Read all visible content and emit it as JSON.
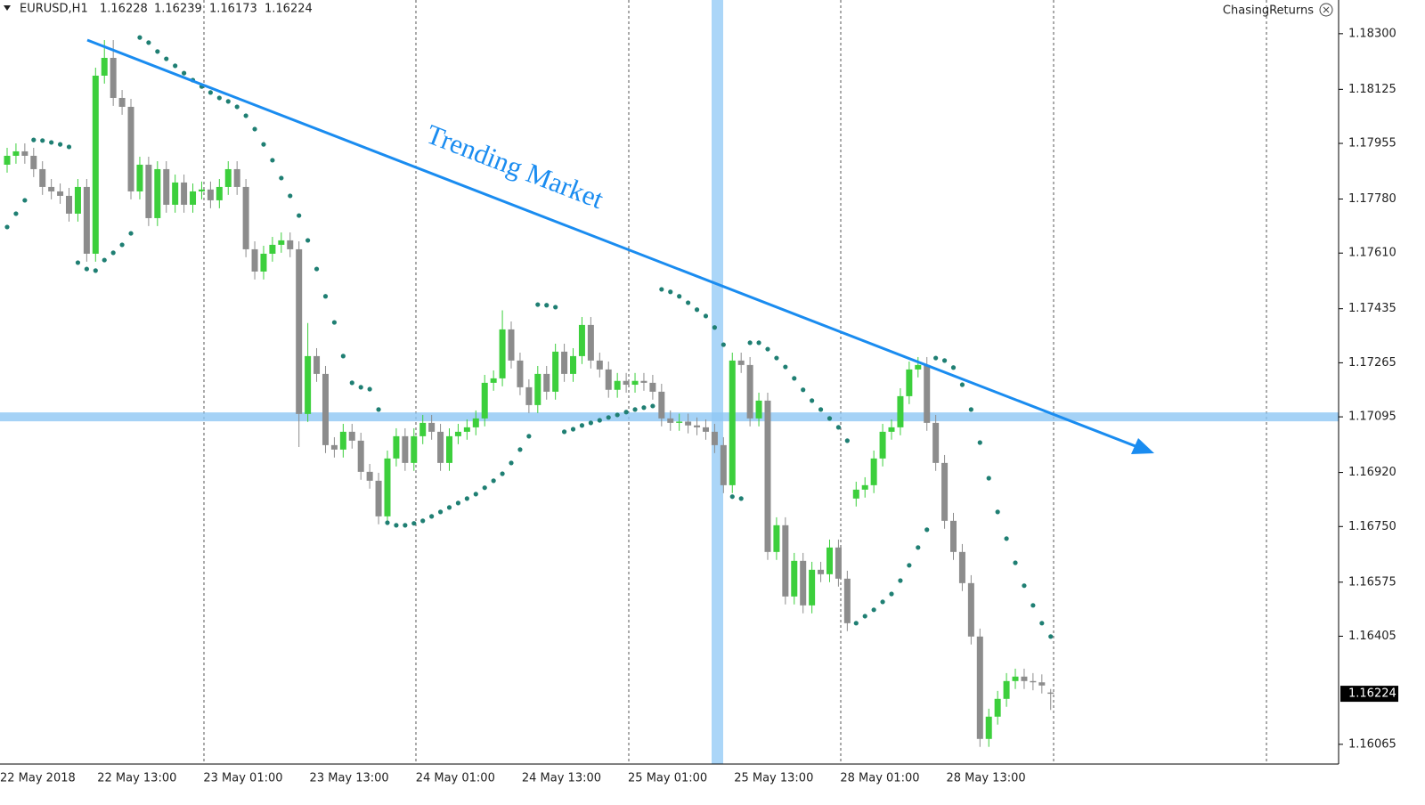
{
  "chart_data": {
    "type": "candlestick",
    "symbol": "EURUSD,H1",
    "header_ohlc": [
      1.16228,
      1.16239,
      1.16173,
      1.16224
    ],
    "brand": "ChasingReturns",
    "annotation": "Trending Market",
    "current_price": 1.16224,
    "horizontal_level": 1.17095,
    "up_color": "#3ccf3c",
    "down_color": "#8c8c8c",
    "sar_color": "#1f7f73",
    "ylim": [
      1.16003,
      1.18406
    ],
    "yticks": [
      {
        "value": 1.183,
        "label": "1.18300"
      },
      1.18125,
      1.17955,
      {
        "value": 1.1778,
        "label": "1.17780"
      },
      {
        "value": 1.1761,
        "label": "1.17610"
      },
      1.17435,
      1.17265,
      1.17095,
      {
        "value": 1.1692,
        "label": "1.16920"
      },
      {
        "value": 1.1675,
        "label": "1.16750"
      },
      1.16575,
      1.16405,
      1.16065
    ],
    "categories": [
      "22 May 2018",
      null,
      null,
      null,
      null,
      null,
      null,
      null,
      null,
      null,
      null,
      "22 May 13:00",
      null,
      null,
      null,
      null,
      null,
      null,
      null,
      null,
      null,
      null,
      null,
      "23 May 01:00",
      null,
      null,
      null,
      null,
      null,
      null,
      null,
      null,
      null,
      null,
      null,
      "23 May 13:00",
      null,
      null,
      null,
      null,
      null,
      null,
      null,
      null,
      null,
      null,
      null,
      "24 May 01:00",
      null,
      null,
      null,
      null,
      null,
      null,
      null,
      null,
      null,
      null,
      null,
      "24 May 13:00",
      null,
      null,
      null,
      null,
      null,
      null,
      null,
      null,
      null,
      null,
      null,
      "25 May 01:00",
      null,
      null,
      null,
      null,
      null,
      null,
      null,
      null,
      null,
      null,
      null,
      "25 May 13:00",
      null,
      null,
      null,
      null,
      null,
      null,
      null,
      null,
      null,
      null,
      null,
      "28 May 01:00",
      null,
      null,
      null,
      null,
      null,
      null,
      null,
      null,
      null,
      null,
      null,
      "28 May 13:00",
      null,
      null,
      null,
      null,
      null,
      null,
      null,
      null,
      null,
      null,
      null
    ],
    "open": [
      1.17888,
      1.17916,
      1.1793,
      1.17916,
      1.17874,
      1.17818,
      1.17804,
      1.1779,
      1.17734,
      1.17818,
      1.17608,
      1.18168,
      1.18224,
      1.18098,
      1.1807,
      1.17804,
      1.17888,
      1.1772,
      1.17874,
      1.17762,
      1.17832,
      1.17762,
      1.17804,
      1.1781,
      1.17776,
      1.17818,
      1.17874,
      1.17818,
      1.17622,
      1.17552,
      1.17608,
      1.17636,
      1.1765,
      1.17622,
      1.17104,
      1.17286,
      1.1723,
      1.17006,
      1.16992,
      1.17048,
      1.1702,
      1.16922,
      1.16894,
      1.16782,
      1.16964,
      1.17034,
      1.1695,
      1.17034,
      1.17076,
      1.17048,
      1.1695,
      1.17034,
      1.17048,
      1.17062,
      1.1709,
      1.17202,
      1.17216,
      1.1737,
      1.17272,
      1.17188,
      1.17132,
      1.1723,
      1.17174,
      1.173,
      1.1723,
      1.17286,
      1.17384,
      1.17272,
      1.17244,
      1.1718,
      1.17208,
      1.17196,
      1.17208,
      1.17202,
      1.17174,
      1.1709,
      1.17076,
      1.1708,
      1.17068,
      1.17062,
      1.17048,
      1.17006,
      1.1688,
      1.17272,
      1.17258,
      1.1709,
      1.17146,
      1.1667,
      1.16754,
      1.1653,
      1.16642,
      1.16502,
      1.16614,
      1.166,
      1.16684,
      1.16586,
      1.16838,
      1.16866,
      1.1688,
      1.16964,
      1.17048,
      1.17062,
      1.1716,
      1.17244,
      1.17258,
      1.17076,
      1.1695,
      1.16768,
      1.1667,
      1.16572,
      1.16404,
      1.16082,
      1.16152,
      1.16208,
      1.16264,
      1.16278,
      1.16264,
      1.1626,
      1.16228
    ],
    "high": [
      1.17941,
      1.17955,
      1.17955,
      1.17941,
      1.17899,
      1.17843,
      1.17829,
      1.17815,
      1.17843,
      1.17843,
      1.18193,
      1.1828,
      1.1828,
      1.18123,
      1.18095,
      1.17913,
      1.17913,
      1.17899,
      1.17899,
      1.17857,
      1.17857,
      1.17829,
      1.17835,
      1.17835,
      1.17843,
      1.17899,
      1.17899,
      1.17843,
      1.17647,
      1.17633,
      1.17661,
      1.17675,
      1.17675,
      1.17647,
      1.1739,
      1.17311,
      1.17255,
      1.17031,
      1.17073,
      1.17073,
      1.17045,
      1.16947,
      1.16919,
      1.16989,
      1.17059,
      1.17059,
      1.17059,
      1.17101,
      1.17101,
      1.17073,
      1.17059,
      1.17073,
      1.17087,
      1.17115,
      1.17227,
      1.17241,
      1.1743,
      1.17395,
      1.17297,
      1.17213,
      1.17255,
      1.17255,
      1.17325,
      1.17325,
      1.17311,
      1.17409,
      1.17409,
      1.17297,
      1.17269,
      1.17233,
      1.17233,
      1.17233,
      1.17233,
      1.17227,
      1.17199,
      1.17115,
      1.17105,
      1.17105,
      1.17093,
      1.17087,
      1.17073,
      1.17031,
      1.17297,
      1.17297,
      1.17283,
      1.17171,
      1.17171,
      1.16779,
      1.16779,
      1.16667,
      1.16667,
      1.16639,
      1.16639,
      1.16709,
      1.16709,
      1.16611,
      1.16891,
      1.16905,
      1.16989,
      1.17073,
      1.17087,
      1.17185,
      1.17269,
      1.17283,
      1.17283,
      1.17101,
      1.16975,
      1.16793,
      1.16695,
      1.16597,
      1.16429,
      1.16177,
      1.16233,
      1.16289,
      1.16303,
      1.16303,
      1.16289,
      1.16285,
      1.16239
    ],
    "low": [
      1.17863,
      1.17891,
      1.17891,
      1.17849,
      1.17793,
      1.17779,
      1.17765,
      1.17709,
      1.17709,
      1.17583,
      1.17583,
      1.18143,
      1.18073,
      1.18045,
      1.17779,
      1.17779,
      1.17695,
      1.17695,
      1.17737,
      1.17737,
      1.17737,
      1.17737,
      1.17779,
      1.17751,
      1.17751,
      1.17793,
      1.17793,
      1.17597,
      1.17527,
      1.17527,
      1.17583,
      1.17611,
      1.17597,
      1.17,
      1.17079,
      1.17205,
      1.16981,
      1.16967,
      1.16967,
      1.16995,
      1.16897,
      1.16869,
      1.16757,
      1.16757,
      1.16939,
      1.16925,
      1.16925,
      1.17009,
      1.17023,
      1.16925,
      1.16925,
      1.17009,
      1.17023,
      1.17037,
      1.17065,
      1.17177,
      1.17191,
      1.17247,
      1.17163,
      1.17107,
      1.17107,
      1.17149,
      1.17149,
      1.17205,
      1.17205,
      1.17261,
      1.17247,
      1.17219,
      1.17155,
      1.17155,
      1.17171,
      1.17171,
      1.17177,
      1.17149,
      1.17065,
      1.17051,
      1.17051,
      1.17043,
      1.17037,
      1.17023,
      1.16981,
      1.16855,
      1.16855,
      1.17233,
      1.17065,
      1.17065,
      1.16645,
      1.16645,
      1.16505,
      1.16505,
      1.16477,
      1.16477,
      1.16575,
      1.16575,
      1.16561,
      1.16421,
      1.16813,
      1.16841,
      1.16855,
      1.16939,
      1.17023,
      1.17037,
      1.17135,
      1.17219,
      1.17051,
      1.16925,
      1.16743,
      1.16645,
      1.16547,
      1.16379,
      1.16057,
      1.16057,
      1.16127,
      1.16183,
      1.16239,
      1.16239,
      1.16235,
      1.16225,
      1.16173
    ],
    "close": [
      1.17916,
      1.1793,
      1.17916,
      1.17874,
      1.17818,
      1.17804,
      1.1779,
      1.17734,
      1.17818,
      1.17608,
      1.18168,
      1.18224,
      1.18098,
      1.1807,
      1.17804,
      1.17888,
      1.1772,
      1.17874,
      1.17762,
      1.17832,
      1.17762,
      1.17804,
      1.1781,
      1.17776,
      1.17818,
      1.17874,
      1.17818,
      1.17622,
      1.17552,
      1.17608,
      1.17636,
      1.1765,
      1.17622,
      1.17104,
      1.17286,
      1.1723,
      1.17006,
      1.16992,
      1.17048,
      1.1702,
      1.16922,
      1.16894,
      1.16782,
      1.16964,
      1.17034,
      1.1695,
      1.17034,
      1.17076,
      1.17048,
      1.1695,
      1.17034,
      1.17048,
      1.17062,
      1.1709,
      1.17202,
      1.17216,
      1.1737,
      1.17272,
      1.17188,
      1.17132,
      1.1723,
      1.17174,
      1.173,
      1.1723,
      1.17286,
      1.17384,
      1.17272,
      1.17244,
      1.1718,
      1.17208,
      1.17196,
      1.17208,
      1.17202,
      1.17174,
      1.1709,
      1.17076,
      1.1708,
      1.17068,
      1.17062,
      1.17048,
      1.17006,
      1.1688,
      1.17272,
      1.17258,
      1.1709,
      1.17146,
      1.1667,
      1.16754,
      1.1653,
      1.16642,
      1.16502,
      1.16614,
      1.166,
      1.16684,
      1.16586,
      1.16446,
      1.16866,
      1.1688,
      1.16964,
      1.17048,
      1.17062,
      1.1716,
      1.17244,
      1.17258,
      1.17076,
      1.1695,
      1.16768,
      1.1667,
      1.16572,
      1.16404,
      1.16082,
      1.16152,
      1.16208,
      1.16264,
      1.16278,
      1.16264,
      1.1626,
      1.1625,
      1.16224
    ],
    "sar": [
      1.17692,
      1.17734,
      1.17776,
      1.17966,
      1.17964,
      1.17958,
      1.17952,
      1.17944,
      1.1758,
      1.1756,
      1.17555,
      1.17588,
      1.17611,
      1.17636,
      1.17672,
      1.18288,
      1.18272,
      1.18244,
      1.18221,
      1.18199,
      1.18176,
      1.18154,
      1.18134,
      1.18115,
      1.18098,
      1.18087,
      1.1807,
      1.18042,
      1.18,
      1.17952,
      1.17902,
      1.17846,
      1.1779,
      1.17728,
      1.1765,
      1.1756,
      1.17474,
      1.17392,
      1.17286,
      1.17202,
      1.17188,
      1.17182,
      1.17118,
      1.16762,
      1.16754,
      1.16754,
      1.1676,
      1.16768,
      1.16782,
      1.16796,
      1.1681,
      1.16824,
      1.16838,
      1.16852,
      1.16872,
      1.16894,
      1.16916,
      1.1695,
      1.16992,
      1.17034,
      1.17448,
      1.17446,
      1.1744,
      1.17048,
      1.17056,
      1.17068,
      1.17076,
      1.17084,
      1.17093,
      1.17101,
      1.1711,
      1.17118,
      1.17124,
      1.17129,
      1.17496,
      1.17488,
      1.17474,
      1.17454,
      1.17432,
      1.17412,
      1.17376,
      1.17322,
      1.16844,
      1.16838,
      1.17328,
      1.17328,
      1.17308,
      1.1728,
      1.17252,
      1.17216,
      1.1718,
      1.17146,
      1.17118,
      1.1709,
      1.17062,
      1.1702,
      1.16446,
      1.16468,
      1.16488,
      1.16513,
      1.16538,
      1.1658,
      1.16628,
      1.16684,
      1.1674,
      1.1728,
      1.17272,
      1.1725,
      1.17196,
      1.17118,
      1.17014,
      1.16902,
      1.16796,
      1.16712,
      1.16636,
      1.16564,
      1.16502,
      1.16446,
      1.16404
    ]
  }
}
